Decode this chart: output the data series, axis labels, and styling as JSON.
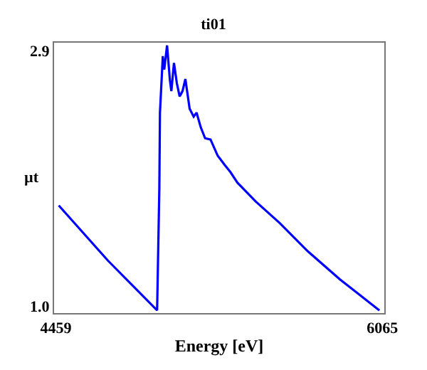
{
  "chart_data": {
    "type": "line",
    "title": "ti01",
    "xlabel": "Energy [eV]",
    "ylabel": "µt",
    "xlim": [
      4450,
      6075
    ],
    "xticks": [
      4459,
      6065
    ],
    "ylim": [
      0.95,
      2.96
    ],
    "yticks": [
      {
        "value": 1.0,
        "label": "1.0"
      },
      2.9
    ],
    "series": [
      {
        "color": "#0000ff",
        "x": [
          4473,
          4715,
          4957,
          4968,
          4971,
          4985,
          4992,
          5006,
          5020,
          5027,
          5040,
          5054,
          5068,
          5082,
          5096,
          5117,
          5137,
          5151,
          5172,
          5193,
          5220,
          5255,
          5290,
          5317,
          5352,
          5442,
          5560,
          5698,
          5857,
          6051
        ],
        "values": [
          1.75,
          1.34,
          0.97,
          1.88,
          2.44,
          2.86,
          2.76,
          2.94,
          2.68,
          2.6,
          2.81,
          2.66,
          2.56,
          2.6,
          2.69,
          2.47,
          2.41,
          2.44,
          2.33,
          2.25,
          2.24,
          2.12,
          2.05,
          2.0,
          1.92,
          1.78,
          1.62,
          1.41,
          1.2,
          0.97
        ]
      }
    ]
  }
}
